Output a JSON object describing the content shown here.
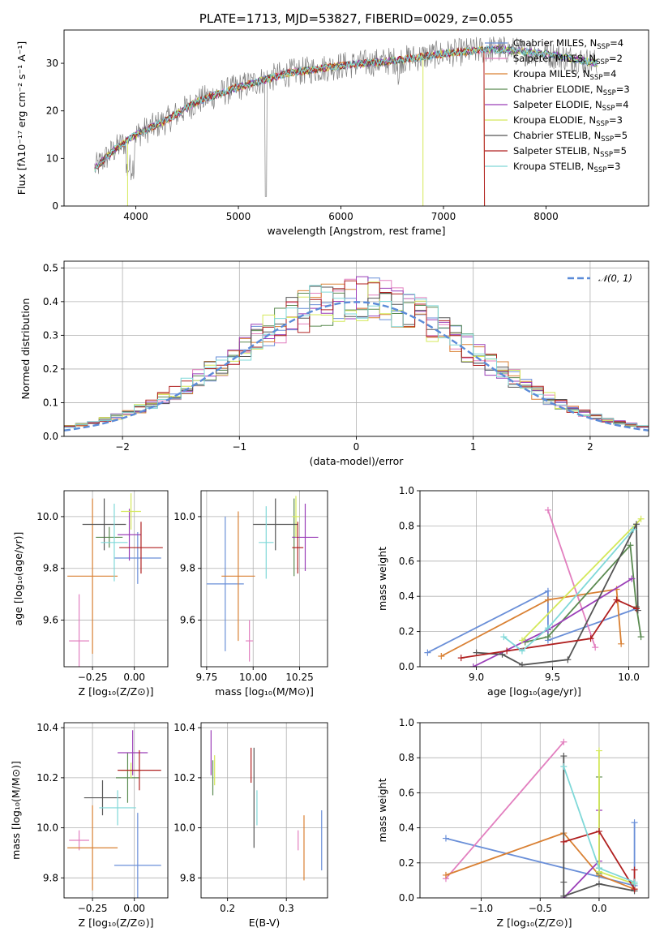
{
  "chart_data": [
    {
      "type": "line",
      "title": "PLATE=1713, MJD=53827, FIBERID=0029, z=0.055",
      "xlabel": "wavelength [Angstrom, rest frame]",
      "ylabel": "Flux [fλ10⁻¹⁷ erg cm⁻² s⁻¹ A⁻¹]",
      "xlim": [
        3300,
        9000
      ],
      "ylim": [
        0,
        37
      ],
      "xticks": [
        "4000",
        "5000",
        "6000",
        "7000",
        "8000"
      ],
      "yticks": [
        "0",
        "10",
        "20",
        "30"
      ],
      "legend_position": "right",
      "series": [
        {
          "name": "Chabrier MILES, N_SSP=4",
          "color": "#6a8fd8"
        },
        {
          "name": "Salpeter MILES, N_SSP=2",
          "color": "#e27fbf"
        },
        {
          "name": "Kroupa MILES, N_SSP=4",
          "color": "#d98033"
        },
        {
          "name": "Chabrier ELODIE, N_SSP=3",
          "color": "#5a8a50"
        },
        {
          "name": "Salpeter ELODIE, N_SSP=4",
          "color": "#9b3fb8"
        },
        {
          "name": "Kroupa ELODIE, N_SSP=3",
          "color": "#d4e85a"
        },
        {
          "name": "Chabrier STELIB, N_SSP=5",
          "color": "#555555"
        },
        {
          "name": "Salpeter STELIB, N_SSP=5",
          "color": "#b02020"
        },
        {
          "name": "Kroupa STELIB, N_SSP=3",
          "color": "#7fd8d8"
        }
      ],
      "continuum": {
        "x": [
          3600,
          3800,
          4000,
          4300,
          4600,
          5000,
          5500,
          6000,
          6500,
          7000,
          7500,
          8000,
          8500
        ],
        "y": [
          8,
          12,
          15,
          18,
          22,
          25,
          28,
          29.5,
          30.5,
          32,
          33,
          32,
          30
        ]
      },
      "observed_range": [
        3600,
        8500
      ]
    },
    {
      "type": "line",
      "title": "",
      "xlabel": "(data-model)/error",
      "ylabel": "Normed distribution",
      "xlim": [
        -2.5,
        2.5
      ],
      "ylim": [
        0,
        0.52
      ],
      "xticks": [
        "−2",
        "−1",
        "0",
        "1",
        "2"
      ],
      "yticks": [
        "0.0",
        "0.1",
        "0.2",
        "0.3",
        "0.4",
        "0.5"
      ],
      "legend": "𝒩(0, 1)",
      "legend_position": "top-right",
      "reference": {
        "name": "𝒩(0, 1)",
        "mean": 0,
        "sd": 1,
        "color": "#5b8bd8"
      },
      "bins": {
        "start": -2.5,
        "width": 0.1,
        "count": 50
      }
    },
    {
      "type": "scatter",
      "xlabel": "Z [log₁₀(Z/Z⊙)]",
      "ylabel": "age  [log₁₀(age/yr)]",
      "xlim": [
        -0.42,
        0.2
      ],
      "ylim": [
        9.42,
        10.1
      ],
      "xticks": [
        "−0.25",
        "0.00"
      ],
      "yticks": [
        "9.6",
        "9.8",
        "10.0"
      ],
      "points": [
        {
          "x": 0.02,
          "y": 9.84,
          "xerr": 0.14,
          "yerr": 0.1,
          "color": "#6a8fd8"
        },
        {
          "x": -0.33,
          "y": 9.52,
          "xerr": 0.06,
          "yerr": 0.18,
          "color": "#e27fbf"
        },
        {
          "x": -0.25,
          "y": 9.77,
          "xerr": 0.15,
          "yerr": 0.3,
          "color": "#d98033"
        },
        {
          "x": -0.15,
          "y": 9.92,
          "xerr": 0.08,
          "yerr": 0.04,
          "color": "#5a8a50"
        },
        {
          "x": -0.03,
          "y": 9.93,
          "xerr": 0.07,
          "yerr": 0.1,
          "color": "#9b3fb8"
        },
        {
          "x": -0.02,
          "y": 10.02,
          "xerr": 0.06,
          "yerr": 0.07,
          "color": "#d4e85a"
        },
        {
          "x": -0.18,
          "y": 9.97,
          "xerr": 0.13,
          "yerr": 0.1,
          "color": "#555555"
        },
        {
          "x": 0.04,
          "y": 9.88,
          "xerr": 0.13,
          "yerr": 0.1,
          "color": "#b02020"
        },
        {
          "x": -0.12,
          "y": 9.9,
          "xerr": 0.08,
          "yerr": 0.15,
          "color": "#7fd8d8"
        }
      ]
    },
    {
      "type": "scatter",
      "xlabel": "mass [log₁₀(M/M⊙)]",
      "ylabel": "",
      "xlim": [
        9.72,
        10.4
      ],
      "ylim": [
        9.42,
        10.1
      ],
      "xticks": [
        "9.75",
        "10.00",
        "10.25"
      ],
      "yticks": [
        "9.6",
        "9.8",
        "10.0"
      ],
      "points": [
        {
          "x": 9.85,
          "y": 9.74,
          "xerr": 0.1,
          "yerr": 0.26,
          "color": "#6a8fd8"
        },
        {
          "x": 9.98,
          "y": 9.52,
          "xerr": 0.02,
          "yerr": 0.08,
          "color": "#e27fbf"
        },
        {
          "x": 9.92,
          "y": 9.77,
          "xerr": 0.09,
          "yerr": 0.25,
          "color": "#d98033"
        },
        {
          "x": 10.22,
          "y": 9.92,
          "xerr": 0.01,
          "yerr": 0.15,
          "color": "#5a8a50"
        },
        {
          "x": 10.28,
          "y": 9.92,
          "xerr": 0.07,
          "yerr": 0.13,
          "color": "#9b3fb8"
        },
        {
          "x": 10.23,
          "y": 10.0,
          "xerr": 0.02,
          "yerr": 0.08,
          "color": "#d4e85a"
        },
        {
          "x": 10.12,
          "y": 9.97,
          "xerr": 0.12,
          "yerr": 0.1,
          "color": "#555555"
        },
        {
          "x": 10.24,
          "y": 9.88,
          "xerr": 0.03,
          "yerr": 0.1,
          "color": "#b02020"
        },
        {
          "x": 10.07,
          "y": 9.9,
          "xerr": 0.04,
          "yerr": 0.14,
          "color": "#7fd8d8"
        }
      ]
    },
    {
      "type": "line",
      "xlabel": "age  [log₁₀(age/yr)]",
      "ylabel": "mass weight",
      "xlim": [
        8.63,
        10.13
      ],
      "ylim": [
        0,
        1.0
      ],
      "xticks": [
        "9.0",
        "9.5",
        "10.0"
      ],
      "yticks": [
        "0.0",
        "0.2",
        "0.4",
        "0.6",
        "0.8",
        "1.0"
      ],
      "series": [
        {
          "color": "#6a8fd8",
          "x": [
            8.68,
            9.47,
            9.47,
            10.05
          ],
          "y": [
            0.08,
            0.43,
            0.15,
            0.33
          ]
        },
        {
          "color": "#e27fbf",
          "x": [
            9.47,
            9.78
          ],
          "y": [
            0.89,
            0.11
          ]
        },
        {
          "color": "#d98033",
          "x": [
            8.77,
            9.47,
            9.92,
            9.95
          ],
          "y": [
            0.06,
            0.38,
            0.44,
            0.13
          ]
        },
        {
          "color": "#5a8a50",
          "x": [
            9.32,
            9.47,
            10.01,
            10.05,
            10.08
          ],
          "y": [
            0.14,
            0.17,
            0.69,
            0.34,
            0.17
          ]
        },
        {
          "color": "#9b3fb8",
          "x": [
            8.98,
            9.47,
            10.02
          ],
          "y": [
            0.0,
            0.21,
            0.5
          ]
        },
        {
          "color": "#d4e85a",
          "x": [
            9.3,
            10.08
          ],
          "y": [
            0.15,
            0.84
          ]
        },
        {
          "color": "#555555",
          "x": [
            9.0,
            9.17,
            9.3,
            9.6,
            10.05,
            10.06
          ],
          "y": [
            0.08,
            0.07,
            0.01,
            0.04,
            0.81,
            0.32
          ]
        },
        {
          "color": "#b02020",
          "x": [
            8.9,
            9.2,
            9.75,
            9.92,
            10.05
          ],
          "y": [
            0.05,
            0.09,
            0.16,
            0.38,
            0.33
          ]
        },
        {
          "color": "#7fd8d8",
          "x": [
            9.18,
            9.3,
            9.47,
            10.03
          ],
          "y": [
            0.17,
            0.09,
            0.22,
            0.78
          ]
        }
      ]
    },
    {
      "type": "scatter",
      "xlabel": "Z [log₁₀(Z/Z⊙)]",
      "ylabel": "mass [log₁₀(M/M⊙)]",
      "xlim": [
        -0.42,
        0.2
      ],
      "ylim": [
        9.72,
        10.42
      ],
      "xticks": [
        "−0.25",
        "0.00"
      ],
      "yticks": [
        "9.8",
        "10.0",
        "10.2",
        "10.4"
      ],
      "points": [
        {
          "x": 0.02,
          "y": 9.85,
          "xerr": 0.14,
          "yerr": 0.21,
          "color": "#6a8fd8"
        },
        {
          "x": -0.33,
          "y": 9.95,
          "xerr": 0.06,
          "yerr": 0.04,
          "color": "#e27fbf"
        },
        {
          "x": -0.25,
          "y": 9.92,
          "xerr": 0.15,
          "yerr": 0.17,
          "color": "#d98033"
        },
        {
          "x": -0.04,
          "y": 10.2,
          "xerr": 0.07,
          "yerr": 0.1,
          "color": "#5a8a50"
        },
        {
          "x": -0.01,
          "y": 10.3,
          "xerr": 0.09,
          "yerr": 0.09,
          "color": "#9b3fb8"
        },
        {
          "x": -0.02,
          "y": 10.23,
          "xerr": 0.06,
          "yerr": 0.03,
          "color": "#d4e85a"
        },
        {
          "x": -0.19,
          "y": 10.12,
          "xerr": 0.11,
          "yerr": 0.07,
          "color": "#555555"
        },
        {
          "x": 0.03,
          "y": 10.23,
          "xerr": 0.13,
          "yerr": 0.08,
          "color": "#b02020"
        },
        {
          "x": -0.1,
          "y": 10.08,
          "xerr": 0.11,
          "yerr": 0.07,
          "color": "#7fd8d8"
        }
      ]
    },
    {
      "type": "scatter",
      "xlabel": "E(B-V)",
      "ylabel": "",
      "xlim": [
        0.155,
        0.37
      ],
      "ylim": [
        9.72,
        10.42
      ],
      "xticks": [
        "0.2",
        "0.3"
      ],
      "yticks": [
        "9.8",
        "10.0",
        "10.2",
        "10.4"
      ],
      "points": [
        {
          "x": 0.36,
          "y": 9.95,
          "xerr": 0,
          "yerr": 0.12,
          "color": "#6a8fd8"
        },
        {
          "x": 0.32,
          "y": 9.95,
          "xerr": 0,
          "yerr": 0.04,
          "color": "#e27fbf"
        },
        {
          "x": 0.33,
          "y": 9.92,
          "xerr": 0,
          "yerr": 0.13,
          "color": "#d98033"
        },
        {
          "x": 0.175,
          "y": 10.2,
          "xerr": 0,
          "yerr": 0.07,
          "color": "#5a8a50"
        },
        {
          "x": 0.172,
          "y": 10.3,
          "xerr": 0,
          "yerr": 0.09,
          "color": "#9b3fb8"
        },
        {
          "x": 0.178,
          "y": 10.23,
          "xerr": 0,
          "yerr": 0.06,
          "color": "#d4e85a"
        },
        {
          "x": 0.245,
          "y": 10.12,
          "xerr": 0,
          "yerr": 0.2,
          "color": "#555555"
        },
        {
          "x": 0.24,
          "y": 10.25,
          "xerr": 0,
          "yerr": 0.07,
          "color": "#b02020"
        },
        {
          "x": 0.25,
          "y": 10.08,
          "xerr": 0,
          "yerr": 0.07,
          "color": "#7fd8d8"
        }
      ]
    },
    {
      "type": "line",
      "xlabel": "Z [log₁₀(Z/Z⊙)]",
      "ylabel": "mass weight",
      "xlim": [
        -1.52,
        0.42
      ],
      "ylim": [
        0,
        1.0
      ],
      "xticks": [
        "−1.0",
        "−0.5",
        "0.0"
      ],
      "yticks": [
        "0.0",
        "0.2",
        "0.4",
        "0.6",
        "0.8",
        "1.0"
      ],
      "series": [
        {
          "color": "#6a8fd8",
          "x": [
            -1.3,
            0.3,
            0.3
          ],
          "y": [
            0.34,
            0.07,
            0.43
          ]
        },
        {
          "color": "#e27fbf",
          "x": [
            -1.3,
            -0.3
          ],
          "y": [
            0.11,
            0.89
          ]
        },
        {
          "color": "#d98033",
          "x": [
            -1.3,
            -0.3,
            0.0,
            0.3
          ],
          "y": [
            0.13,
            0.37,
            0.13,
            0.05
          ]
        },
        {
          "color": "#5a8a50",
          "x": [
            0.0,
            0.0,
            0.0
          ],
          "y": [
            0.69,
            0.17,
            0.14
          ]
        },
        {
          "color": "#9b3fb8",
          "x": [
            -0.3,
            0.0,
            0.0
          ],
          "y": [
            0.0,
            0.21,
            0.5
          ]
        },
        {
          "color": "#d4e85a",
          "x": [
            0.0,
            0.0,
            0.3
          ],
          "y": [
            0.84,
            0.15,
            0.08
          ]
        },
        {
          "color": "#555555",
          "x": [
            -0.3,
            -0.3,
            -0.3,
            0.0,
            0.3
          ],
          "y": [
            0.81,
            0.09,
            0.01,
            0.08,
            0.04
          ]
        },
        {
          "color": "#b02020",
          "x": [
            -0.3,
            0.0,
            0.3,
            0.3
          ],
          "y": [
            0.32,
            0.38,
            0.05,
            0.16
          ]
        },
        {
          "color": "#7fd8d8",
          "x": [
            -0.3,
            0.0,
            0.3,
            0.3
          ],
          "y": [
            0.75,
            0.17,
            0.09,
            0.08
          ]
        }
      ]
    }
  ]
}
